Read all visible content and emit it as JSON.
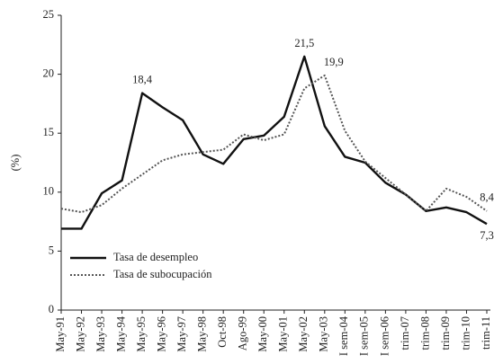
{
  "chart_data": {
    "type": "line",
    "ylabel": "(%)",
    "categories": [
      "May-91",
      "May-92",
      "May-93",
      "May-94",
      "May-95",
      "May-96",
      "May-97",
      "May-98",
      "Oct-98",
      "Ago-99",
      "May-00",
      "May-01",
      "May-02",
      "May-03",
      "I sem-04",
      "I sem-05",
      "I sem-06",
      "trim-07",
      "trim-08",
      "trim-09",
      "trim-10",
      "trim-11"
    ],
    "series": [
      {
        "name": "Tasa de desempleo",
        "color": "#111111",
        "style": "solid",
        "values": [
          6.9,
          6.9,
          9.9,
          11,
          18.4,
          17.2,
          16.1,
          13.2,
          12.4,
          14.5,
          14.8,
          16.4,
          21.5,
          15.6,
          13,
          12.5,
          10.8,
          9.8,
          8.4,
          8.7,
          8.3,
          7.3
        ],
        "value_labels": [
          null,
          null,
          null,
          null,
          "18,4",
          null,
          null,
          null,
          null,
          null,
          null,
          null,
          "21,5",
          null,
          null,
          null,
          null,
          null,
          null,
          null,
          null,
          "7,3"
        ]
      },
      {
        "name": "Tasa de subocupación",
        "color": "#555555",
        "style": "dotted",
        "values": [
          8.6,
          8.3,
          8.9,
          10.3,
          11.5,
          12.7,
          13.2,
          13.4,
          13.6,
          14.9,
          14.4,
          14.9,
          18.8,
          19.9,
          15.2,
          12.6,
          11.2,
          9.8,
          8.4,
          10.3,
          9.6,
          8.4
        ],
        "value_labels": [
          null,
          null,
          null,
          null,
          null,
          null,
          null,
          null,
          null,
          null,
          null,
          null,
          null,
          "19,9",
          null,
          null,
          null,
          null,
          null,
          null,
          null,
          "8,4"
        ]
      }
    ],
    "ylim": [
      0,
      25
    ],
    "yticks": [
      0,
      5,
      10,
      15,
      20,
      25
    ],
    "grid": false,
    "legend": "lower left"
  }
}
